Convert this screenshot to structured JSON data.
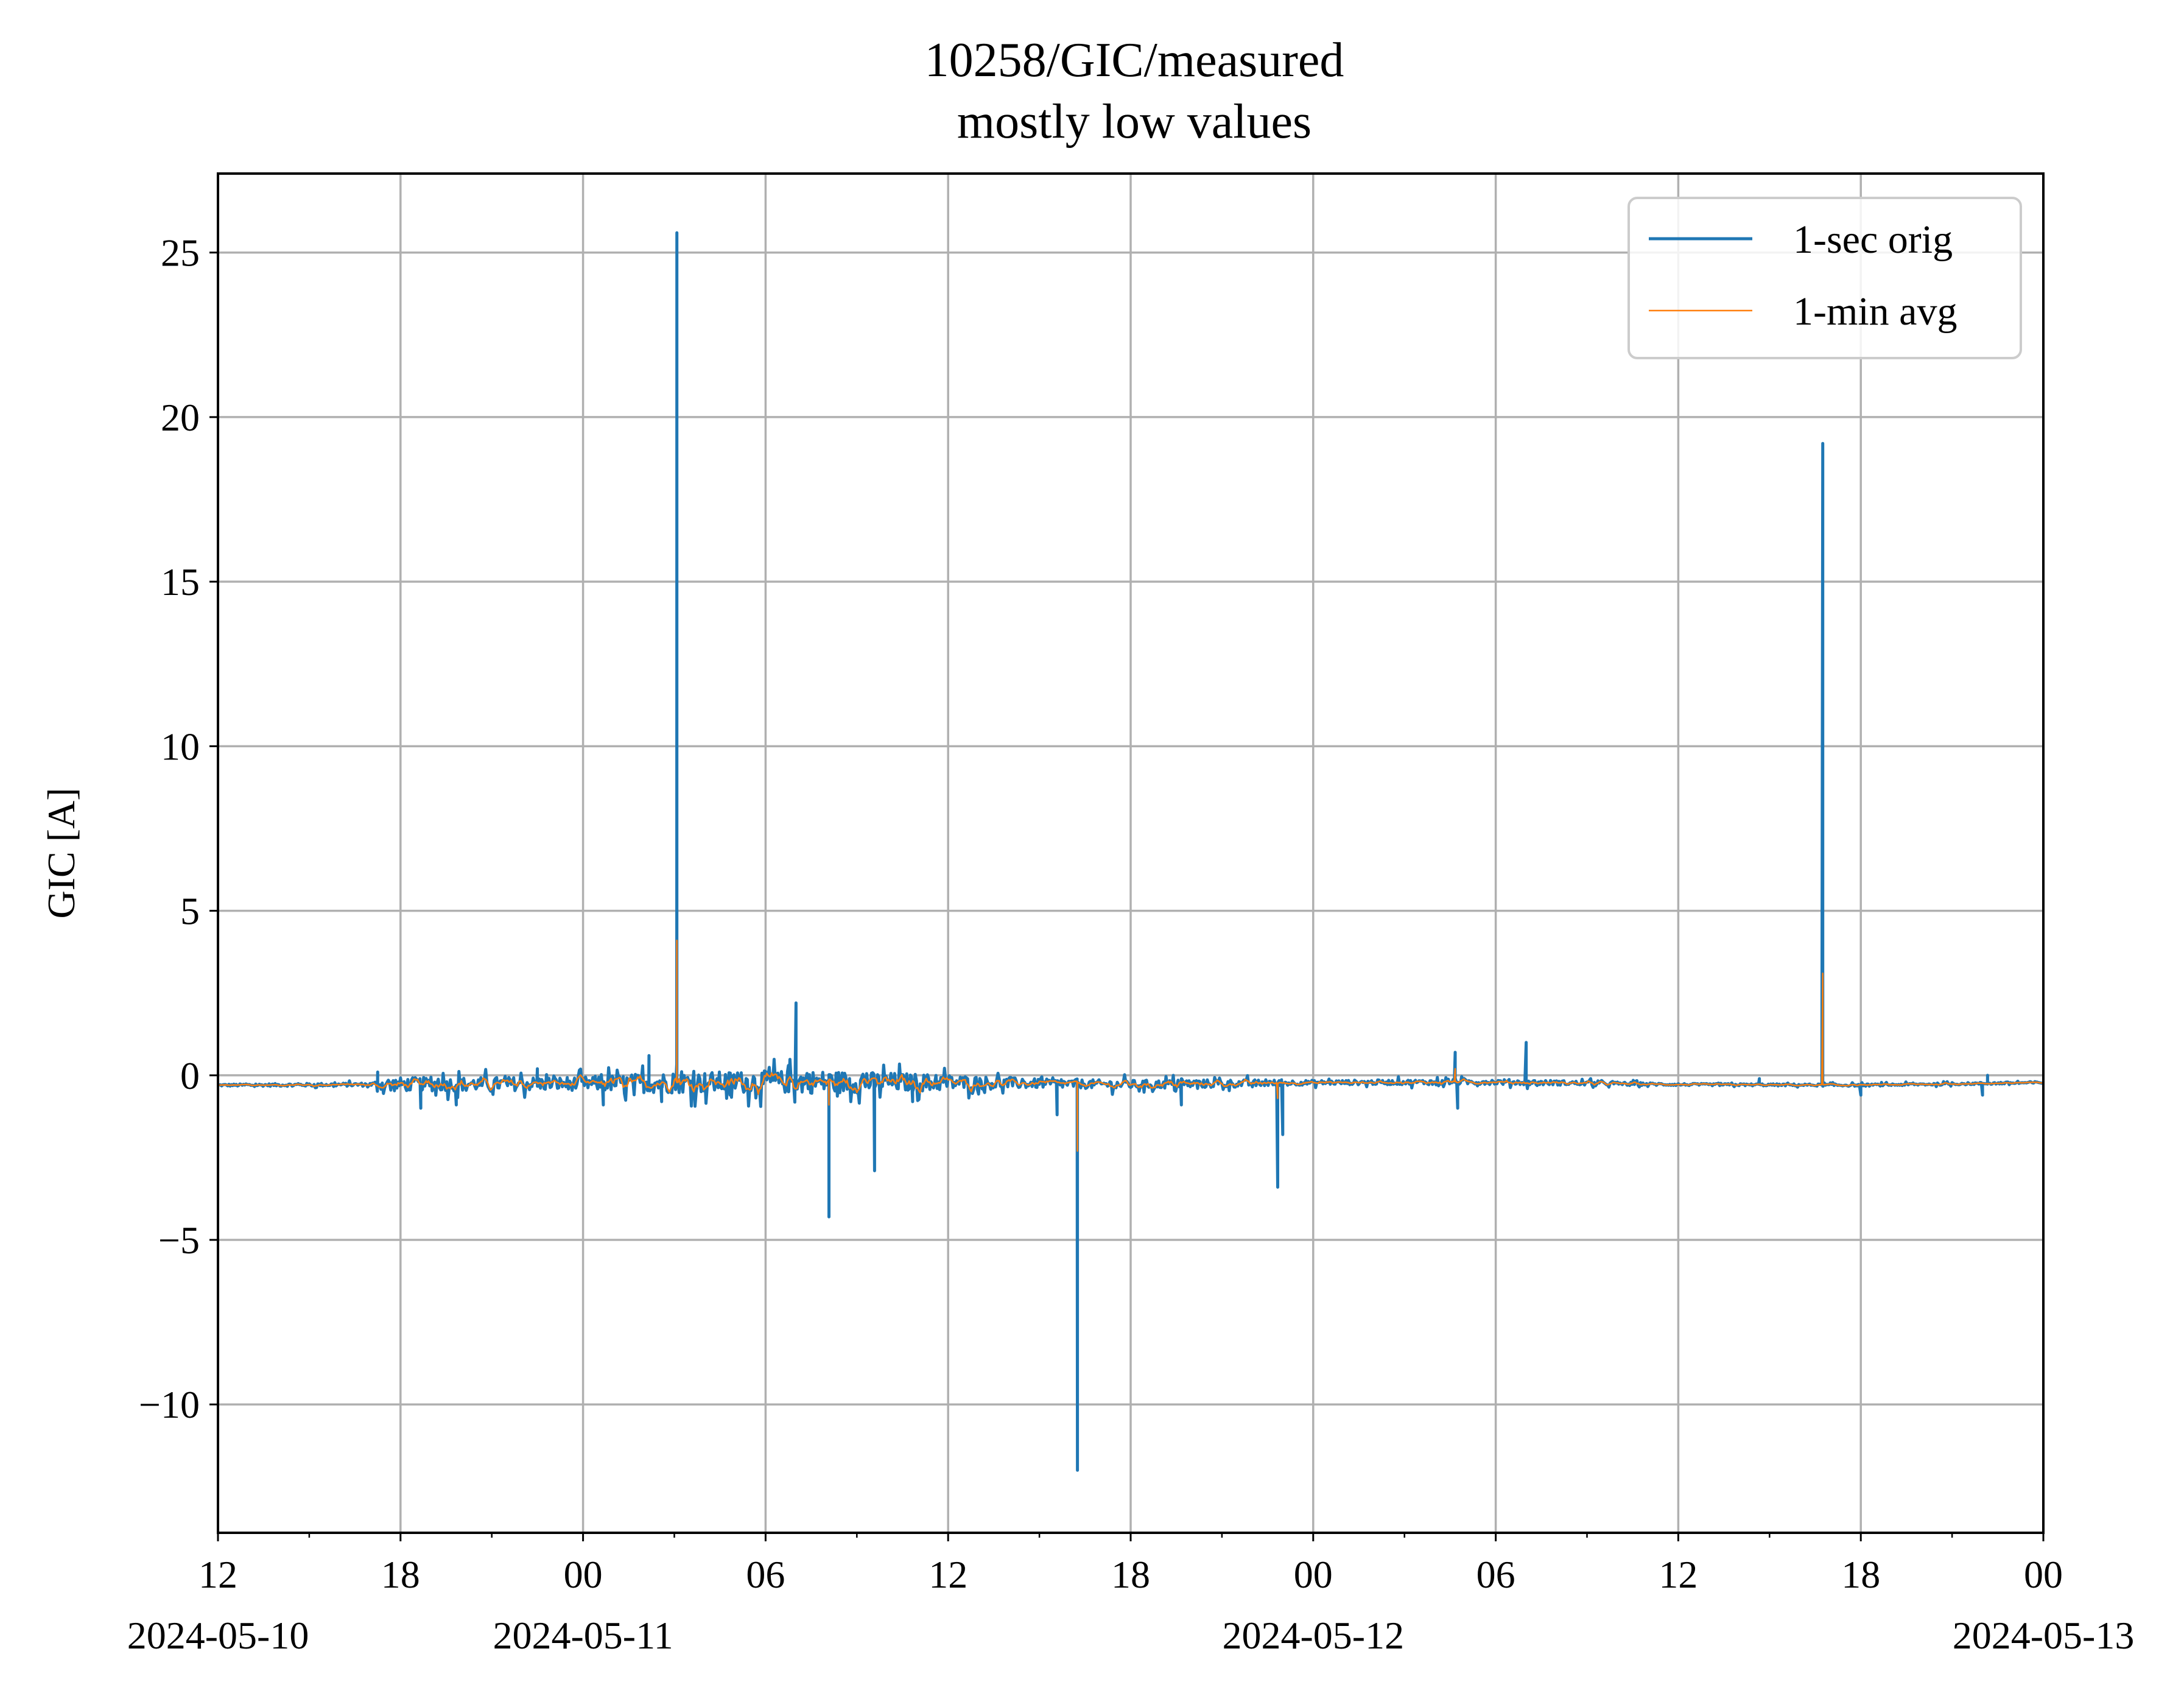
{
  "chart_data": {
    "type": "line",
    "title": "10258/GIC/measured",
    "subtitle": "mostly low values",
    "xlabel": "",
    "ylabel": "GIC [A]",
    "xlim": [
      "2024-05-10 12:00",
      "2024-05-13 00:00"
    ],
    "ylim": [
      -13.9,
      27.4
    ],
    "grid": true,
    "legend_position": "top-right",
    "x_ticks": [
      {
        "time": "2024-05-10 12:00",
        "label": "12",
        "date": "2024-05-10"
      },
      {
        "time": "2024-05-10 18:00",
        "label": "18",
        "date": ""
      },
      {
        "time": "2024-05-11 00:00",
        "label": "00",
        "date": "2024-05-11"
      },
      {
        "time": "2024-05-11 06:00",
        "label": "06",
        "date": ""
      },
      {
        "time": "2024-05-11 12:00",
        "label": "12",
        "date": ""
      },
      {
        "time": "2024-05-11 18:00",
        "label": "18",
        "date": ""
      },
      {
        "time": "2024-05-12 00:00",
        "label": "00",
        "date": "2024-05-12"
      },
      {
        "time": "2024-05-12 06:00",
        "label": "06",
        "date": ""
      },
      {
        "time": "2024-05-12 12:00",
        "label": "12",
        "date": ""
      },
      {
        "time": "2024-05-12 18:00",
        "label": "18",
        "date": ""
      },
      {
        "time": "2024-05-13 00:00",
        "label": "00",
        "date": "2024-05-13"
      }
    ],
    "minor_x_ticks": [
      "2024-05-10 15:00",
      "2024-05-10 21:00",
      "2024-05-11 03:00",
      "2024-05-11 09:00",
      "2024-05-11 15:00",
      "2024-05-11 21:00",
      "2024-05-12 03:00",
      "2024-05-12 09:00",
      "2024-05-12 15:00",
      "2024-05-12 21:00"
    ],
    "y_ticks": [
      {
        "value": -10,
        "label": "−10"
      },
      {
        "value": -5,
        "label": "−5"
      },
      {
        "value": 0,
        "label": "0"
      },
      {
        "value": 5,
        "label": "5"
      },
      {
        "value": 10,
        "label": "10"
      },
      {
        "value": 15,
        "label": "15"
      },
      {
        "value": 20,
        "label": "20"
      },
      {
        "value": 25,
        "label": "25"
      }
    ],
    "series": [
      {
        "name": "1-sec orig",
        "color": "#1f77b4",
        "style": "noisy baseline with spikes",
        "baseline": [
          {
            "time": "2024-05-10 12:00",
            "value": -0.3
          },
          {
            "time": "2024-05-10 17:00",
            "value": -0.28
          },
          {
            "time": "2024-05-11 00:00",
            "value": -0.25
          },
          {
            "time": "2024-05-11 06:00",
            "value": -0.2
          },
          {
            "time": "2024-05-11 12:00",
            "value": -0.22
          },
          {
            "time": "2024-05-11 18:00",
            "value": -0.28
          },
          {
            "time": "2024-05-12 00:00",
            "value": -0.22
          },
          {
            "time": "2024-05-12 06:00",
            "value": -0.2
          },
          {
            "time": "2024-05-12 12:00",
            "value": -0.28
          },
          {
            "time": "2024-05-12 18:00",
            "value": -0.3
          },
          {
            "time": "2024-05-13 00:00",
            "value": -0.22
          }
        ],
        "noise_amplitude": [
          {
            "time": "2024-05-10 12:00",
            "value": 0.05
          },
          {
            "time": "2024-05-10 17:00",
            "value": 0.08
          },
          {
            "time": "2024-05-10 17:30",
            "value": 0.3
          },
          {
            "time": "2024-05-11 00:00",
            "value": 0.3
          },
          {
            "time": "2024-05-11 02:30",
            "value": 0.45
          },
          {
            "time": "2024-05-11 08:00",
            "value": 0.5
          },
          {
            "time": "2024-05-11 12:00",
            "value": 0.35
          },
          {
            "time": "2024-05-11 15:00",
            "value": 0.2
          },
          {
            "time": "2024-05-11 21:00",
            "value": 0.18
          },
          {
            "time": "2024-05-12 00:00",
            "value": 0.1
          },
          {
            "time": "2024-05-12 07:00",
            "value": 0.12
          },
          {
            "time": "2024-05-12 12:00",
            "value": 0.05
          },
          {
            "time": "2024-05-13 00:00",
            "value": 0.05
          }
        ],
        "spikes": [
          {
            "time": "2024-05-10 17:15",
            "value": 0.1
          },
          {
            "time": "2024-05-10 18:40",
            "value": -1.0
          },
          {
            "time": "2024-05-10 19:50",
            "value": -0.9
          },
          {
            "time": "2024-05-10 22:30",
            "value": 0.2
          },
          {
            "time": "2024-05-11 00:40",
            "value": -0.9
          },
          {
            "time": "2024-05-11 02:10",
            "value": 0.6
          },
          {
            "time": "2024-05-11 02:35",
            "value": -0.8
          },
          {
            "time": "2024-05-11 03:05",
            "value": 25.6
          },
          {
            "time": "2024-05-11 04:50",
            "value": -0.6
          },
          {
            "time": "2024-05-11 06:45",
            "value": 0.3
          },
          {
            "time": "2024-05-11 07:00",
            "value": 2.2
          },
          {
            "time": "2024-05-11 08:05",
            "value": -4.3
          },
          {
            "time": "2024-05-11 09:35",
            "value": -2.9
          },
          {
            "time": "2024-05-11 10:50",
            "value": -0.8
          },
          {
            "time": "2024-05-11 15:35",
            "value": -1.2
          },
          {
            "time": "2024-05-11 16:15",
            "value": -12.0
          },
          {
            "time": "2024-05-11 19:40",
            "value": -0.9
          },
          {
            "time": "2024-05-11 22:50",
            "value": -3.4
          },
          {
            "time": "2024-05-11 23:00",
            "value": -1.8
          },
          {
            "time": "2024-05-12 04:40",
            "value": 0.7
          },
          {
            "time": "2024-05-12 04:45",
            "value": -1.0
          },
          {
            "time": "2024-05-12 07:00",
            "value": 1.0
          },
          {
            "time": "2024-05-12 14:40",
            "value": -0.1
          },
          {
            "time": "2024-05-12 16:45",
            "value": 19.2
          },
          {
            "time": "2024-05-12 18:00",
            "value": -0.6
          },
          {
            "time": "2024-05-12 22:00",
            "value": -0.6
          },
          {
            "time": "2024-05-12 22:10",
            "value": 0.0
          }
        ]
      },
      {
        "name": "1-min avg",
        "color": "#ff7f0e",
        "style": "smoothed baseline with damped spikes",
        "spikes": [
          {
            "time": "2024-05-11 03:05",
            "value": 4.1
          },
          {
            "time": "2024-05-11 08:05",
            "value": -0.9
          },
          {
            "time": "2024-05-11 16:15",
            "value": -2.3
          },
          {
            "time": "2024-05-11 22:50",
            "value": -0.7
          },
          {
            "time": "2024-05-12 04:40",
            "value": 0.2
          },
          {
            "time": "2024-05-12 16:45",
            "value": 3.1
          }
        ]
      }
    ]
  }
}
